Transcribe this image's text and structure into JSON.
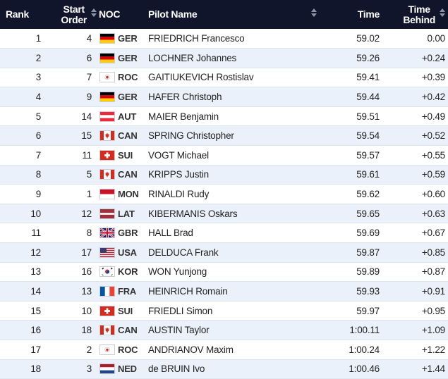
{
  "header": {
    "rank": "Rank",
    "start_order_1": "Start",
    "start_order_2": "Order",
    "noc": "NOC",
    "pilot_name": "Pilot Name",
    "time": "Time",
    "time_behind_1": "Time",
    "time_behind_2": "Behind",
    "sort_icon": "sort-icon"
  },
  "rows": [
    {
      "rank": "1",
      "start": "4",
      "noc": "GER",
      "name": "FRIEDRICH Francesco",
      "time": "59.02",
      "behind": "0.00"
    },
    {
      "rank": "2",
      "start": "6",
      "noc": "GER",
      "name": "LOCHNER Johannes",
      "time": "59.26",
      "behind": "+0.24"
    },
    {
      "rank": "3",
      "start": "7",
      "noc": "ROC",
      "name": "GAITIUKEVICH Rostislav",
      "time": "59.41",
      "behind": "+0.39"
    },
    {
      "rank": "4",
      "start": "9",
      "noc": "GER",
      "name": "HAFER Christoph",
      "time": "59.44",
      "behind": "+0.42"
    },
    {
      "rank": "5",
      "start": "14",
      "noc": "AUT",
      "name": "MAIER Benjamin",
      "time": "59.51",
      "behind": "+0.49"
    },
    {
      "rank": "6",
      "start": "15",
      "noc": "CAN",
      "name": "SPRING Christopher",
      "time": "59.54",
      "behind": "+0.52"
    },
    {
      "rank": "7",
      "start": "11",
      "noc": "SUI",
      "name": "VOGT Michael",
      "time": "59.57",
      "behind": "+0.55"
    },
    {
      "rank": "8",
      "start": "5",
      "noc": "CAN",
      "name": "KRIPPS Justin",
      "time": "59.61",
      "behind": "+0.59"
    },
    {
      "rank": "9",
      "start": "1",
      "noc": "MON",
      "name": "RINALDI Rudy",
      "time": "59.62",
      "behind": "+0.60"
    },
    {
      "rank": "10",
      "start": "12",
      "noc": "LAT",
      "name": "KIBERMANIS Oskars",
      "time": "59.65",
      "behind": "+0.63"
    },
    {
      "rank": "11",
      "start": "8",
      "noc": "GBR",
      "name": "HALL Brad",
      "time": "59.69",
      "behind": "+0.67"
    },
    {
      "rank": "12",
      "start": "17",
      "noc": "USA",
      "name": "DELDUCA Frank",
      "time": "59.87",
      "behind": "+0.85"
    },
    {
      "rank": "13",
      "start": "16",
      "noc": "KOR",
      "name": "WON Yunjong",
      "time": "59.89",
      "behind": "+0.87"
    },
    {
      "rank": "14",
      "start": "13",
      "noc": "FRA",
      "name": "HEINRICH Romain",
      "time": "59.93",
      "behind": "+0.91"
    },
    {
      "rank": "15",
      "start": "10",
      "noc": "SUI",
      "name": "FRIEDLI Simon",
      "time": "59.97",
      "behind": "+0.95"
    },
    {
      "rank": "16",
      "start": "18",
      "noc": "CAN",
      "name": "AUSTIN Taylor",
      "time": "1:00.11",
      "behind": "+1.09"
    },
    {
      "rank": "17",
      "start": "2",
      "noc": "ROC",
      "name": "ANDRIANOV Maxim",
      "time": "1:00.24",
      "behind": "+1.22"
    },
    {
      "rank": "18",
      "start": "3",
      "noc": "NED",
      "name": "de BRUIN Ivo",
      "time": "1:00.46",
      "behind": "+1.44"
    }
  ],
  "colors": {
    "header_bg": "#10152c",
    "row_alt_bg": "#eaf1fb"
  }
}
